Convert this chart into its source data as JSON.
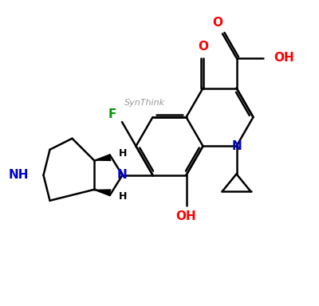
{
  "bg_color": "#ffffff",
  "bond_color": "#000000",
  "N_color": "#0000cc",
  "O_color": "#ff0000",
  "F_color": "#009900",
  "synthink_color": "#999999",
  "line_width": 1.8,
  "fig_width": 4.0,
  "fig_height": 3.84,
  "xlim": [
    0,
    4.0
  ],
  "ylim": [
    0,
    3.84
  ]
}
